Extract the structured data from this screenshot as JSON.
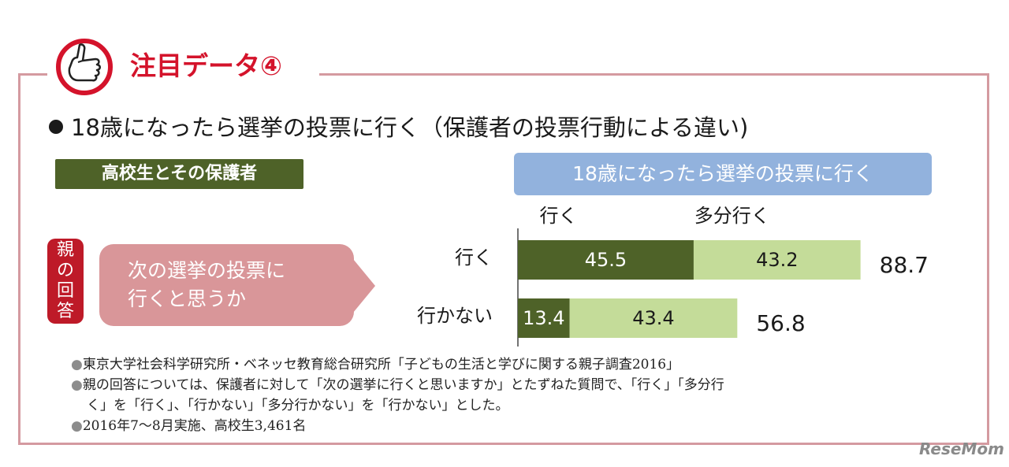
{
  "header": {
    "title": "注目データ④"
  },
  "main_title": "18歳になったら選挙の投票に行く（保護者の投票行動による違い)",
  "left_tag": "高校生とその保護者",
  "chart_header": "18歳になったら選挙の投票に行く",
  "side_label": "親の回答",
  "question": {
    "line1": "次の選挙の投票に",
    "line2": "行くと思うか"
  },
  "chart_data": {
    "type": "bar",
    "orientation": "horizontal",
    "stacked": true,
    "categories": [
      "行く",
      "行かない"
    ],
    "series": [
      {
        "name": "行く",
        "values": [
          45.5,
          13.4
        ],
        "color": "#4e6228"
      },
      {
        "name": "多分行く",
        "values": [
          43.2,
          43.4
        ],
        "color": "#c4dc99"
      }
    ],
    "totals": [
      "88.7",
      "56.8"
    ],
    "xlim": [
      0,
      100
    ],
    "grid": false,
    "legend": "top"
  },
  "notes": [
    "東京大学社会科学研究所・ベネッセ教育総合研究所「子どもの生活と学びに関する親子調査2016」",
    "親の回答については、保護者に対して「次の選挙に行くと思いますか」とたずねた質問で、「行く」「多分行",
    "く」を「行く」、「行かない」「多分行かない」を「行かない」とした。",
    "2016年7～8月実施、高校生3,461名"
  ],
  "note_bullet": "●",
  "watermark": "ReseMom",
  "colors": {
    "accent": "#d4132b",
    "frame": "#d49aa0",
    "dark_green": "#4e6228",
    "light_green": "#c4dc99",
    "blue": "#92b2dd",
    "rose": "#d99699"
  }
}
